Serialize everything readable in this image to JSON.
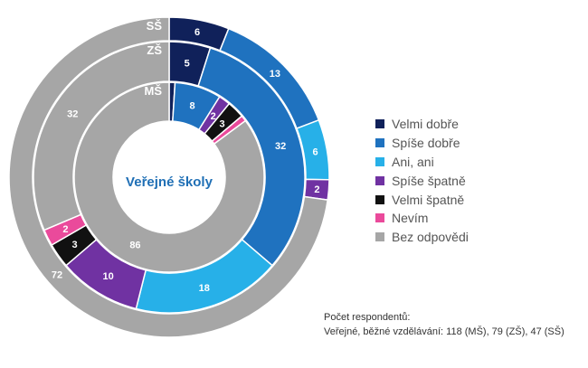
{
  "chart_data": {
    "type": "donut",
    "title": "Veřejné školy",
    "categories": [
      "Velmi dobře",
      "Spíše dobře",
      "Ani, ani",
      "Spíše špatně",
      "Velmi špatně",
      "Nevím",
      "Bez odpovědi"
    ],
    "colors": [
      "#10215a",
      "#1f72bf",
      "#27b0e8",
      "#7032a2",
      "#111111",
      "#ea4a9b",
      "#a6a6a6"
    ],
    "series": [
      {
        "name": "MŠ",
        "values": [
          1,
          8,
          0,
          2,
          3,
          1,
          86
        ]
      },
      {
        "name": "ZŠ",
        "values": [
          5,
          32,
          18,
          10,
          3,
          2,
          32
        ]
      },
      {
        "name": "SŠ",
        "values": [
          6,
          13,
          6,
          2,
          0,
          0,
          72
        ]
      }
    ]
  },
  "value_labels": {
    "MŠ": [
      "",
      "8",
      "",
      "2",
      "3",
      "",
      "86"
    ],
    "ZŠ": [
      "5",
      "32",
      "18",
      "10",
      "3",
      "2",
      "32"
    ],
    "SŠ": [
      "6",
      "13",
      "6",
      "2",
      "",
      "",
      "72"
    ]
  },
  "legend": {
    "items": [
      "Velmi dobře",
      "Spíše dobře",
      "Ani, ani",
      "Spíše špatně",
      "Velmi špatně",
      "Nevím",
      "Bez odpovědi"
    ]
  },
  "note": {
    "line1": "Počet respondentů:",
    "line2": "Veřejné, běžné vzdělávání: 118 (MŠ), 79 (ZŠ), 47 (SŠ)"
  }
}
